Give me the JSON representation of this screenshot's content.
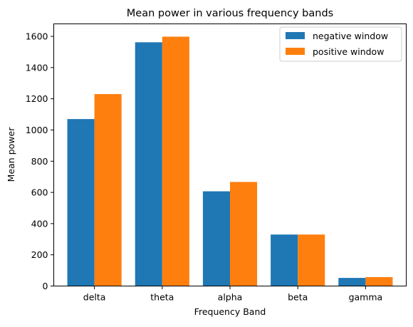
{
  "chart_data": {
    "type": "bar",
    "title": "Mean power in various frequency bands",
    "xlabel": "Frequency Band",
    "ylabel": "Mean power",
    "categories": [
      "delta",
      "theta",
      "alpha",
      "beta",
      "gamma"
    ],
    "ylim": [
      0,
      1680
    ],
    "yticks": [
      0,
      200,
      400,
      600,
      800,
      1000,
      1200,
      1400,
      1600
    ],
    "grid": false,
    "legend_position": "top-right",
    "series": [
      {
        "name": "negative window",
        "color": "#1f77b4",
        "values": [
          1070,
          1562,
          607,
          330,
          52
        ]
      },
      {
        "name": "positive window",
        "color": "#ff7f0e",
        "values": [
          1230,
          1598,
          667,
          330,
          57
        ]
      }
    ]
  }
}
